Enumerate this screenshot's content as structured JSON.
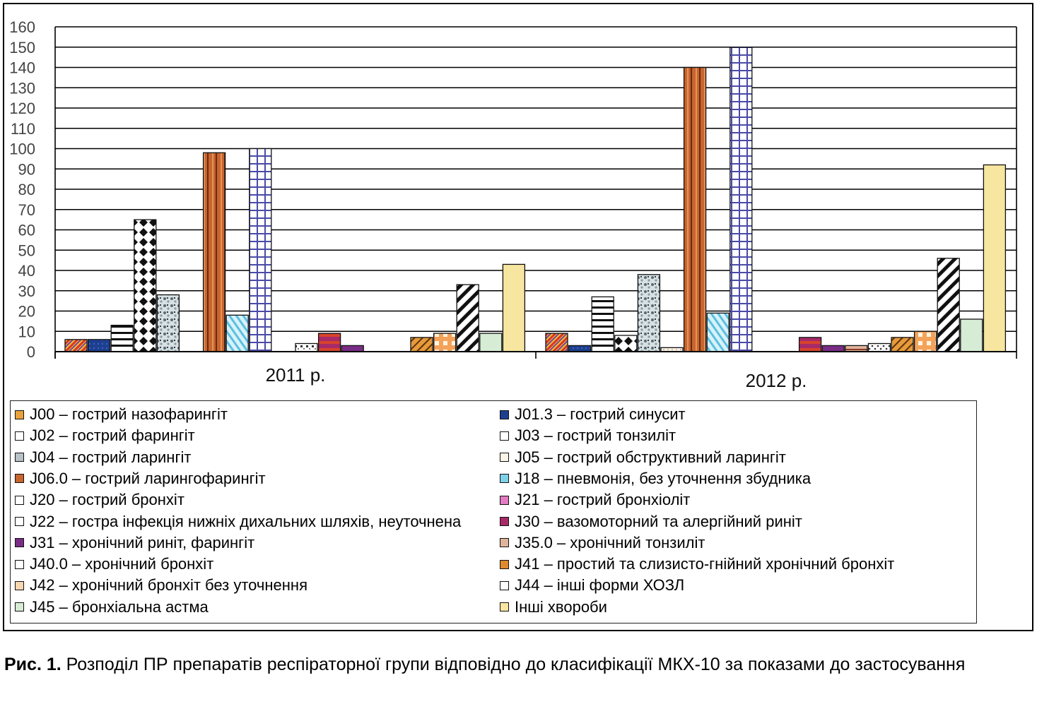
{
  "chart_data": {
    "type": "bar",
    "categories": [
      "2011 р.",
      "2012 р."
    ],
    "ylim": [
      0,
      160
    ],
    "yticks": [
      0,
      10,
      20,
      30,
      40,
      50,
      60,
      70,
      80,
      90,
      100,
      110,
      120,
      130,
      140,
      150,
      160
    ],
    "grid": true,
    "legend_position": "bottom",
    "series": [
      {
        "name": "J00 – гострий назофарингіт",
        "color": "#e8a23c",
        "values": [
          6,
          9
        ]
      },
      {
        "name": "J01.3 – гострий синусит",
        "color": "#1d3f8f",
        "values": [
          6,
          3
        ]
      },
      {
        "name": "J02 – гострий фарингіт",
        "color": "#ffffff",
        "values": [
          13,
          27
        ]
      },
      {
        "name": "J03 – гострий тонзиліт",
        "color": "#ffffff",
        "values": [
          65,
          8
        ]
      },
      {
        "name": "J04 – гострий ларингіт",
        "color": "#b7c2c6",
        "values": [
          28,
          38
        ]
      },
      {
        "name": "J05 – гострий обструктивний ларингіт",
        "color": "#fbf4e8",
        "values": [
          0,
          2
        ]
      },
      {
        "name": "J06.0 – гострий ларингофарингіт",
        "color": "#c7652e",
        "values": [
          98,
          140
        ]
      },
      {
        "name": "J18 – пневмонія, без уточнення збудника",
        "color": "#7fd1ea",
        "values": [
          18,
          19
        ]
      },
      {
        "name": "J20 – гострий бронхіт",
        "color": "#ffffff",
        "values": [
          100,
          150
        ]
      },
      {
        "name": "J21 – гострий бронхіоліт",
        "color": "#e37cc2",
        "values": [
          0,
          0
        ]
      },
      {
        "name": "J22 – гостра інфекція нижніх дихальних шляхів, неуточнена",
        "color": "#ffffff",
        "values": [
          4,
          0
        ]
      },
      {
        "name": "J30 – вазомоторний та алергійний риніт",
        "color": "#a82a68",
        "values": [
          9,
          7
        ]
      },
      {
        "name": "J31 – хронічний риніт, фарингіт",
        "color": "#7a2d85",
        "values": [
          3,
          3
        ]
      },
      {
        "name": "J35.0 – хронічний тонзиліт",
        "color": "#e0b49c",
        "values": [
          0,
          3
        ]
      },
      {
        "name": "J40.0 – хронічний бронхіт",
        "color": "#ffffff",
        "values": [
          0,
          4
        ]
      },
      {
        "name": "J41 – простий та слизисто-гнійний хронічний бронхіт",
        "color": "#e08a2e",
        "values": [
          7,
          7
        ]
      },
      {
        "name": "J42 – хронічний бронхіт без уточнення",
        "color": "#f7d6b0",
        "values": [
          9,
          10
        ]
      },
      {
        "name": "J44 – інші  форми ХОЗЛ",
        "color": "#ffffff",
        "values": [
          33,
          46
        ]
      },
      {
        "name": "J45 – бронхіальна астма",
        "color": "#d6ecd5",
        "values": [
          9,
          16
        ]
      },
      {
        "name": "Інші хвороби",
        "color": "#f7e6a0",
        "values": [
          43,
          92
        ]
      }
    ]
  },
  "caption": {
    "label": "Рис. 1.",
    "text": " Розподіл ПР препаратів респіраторної групи відповідно до класифікації МКХ-10 за показами до застосування"
  }
}
